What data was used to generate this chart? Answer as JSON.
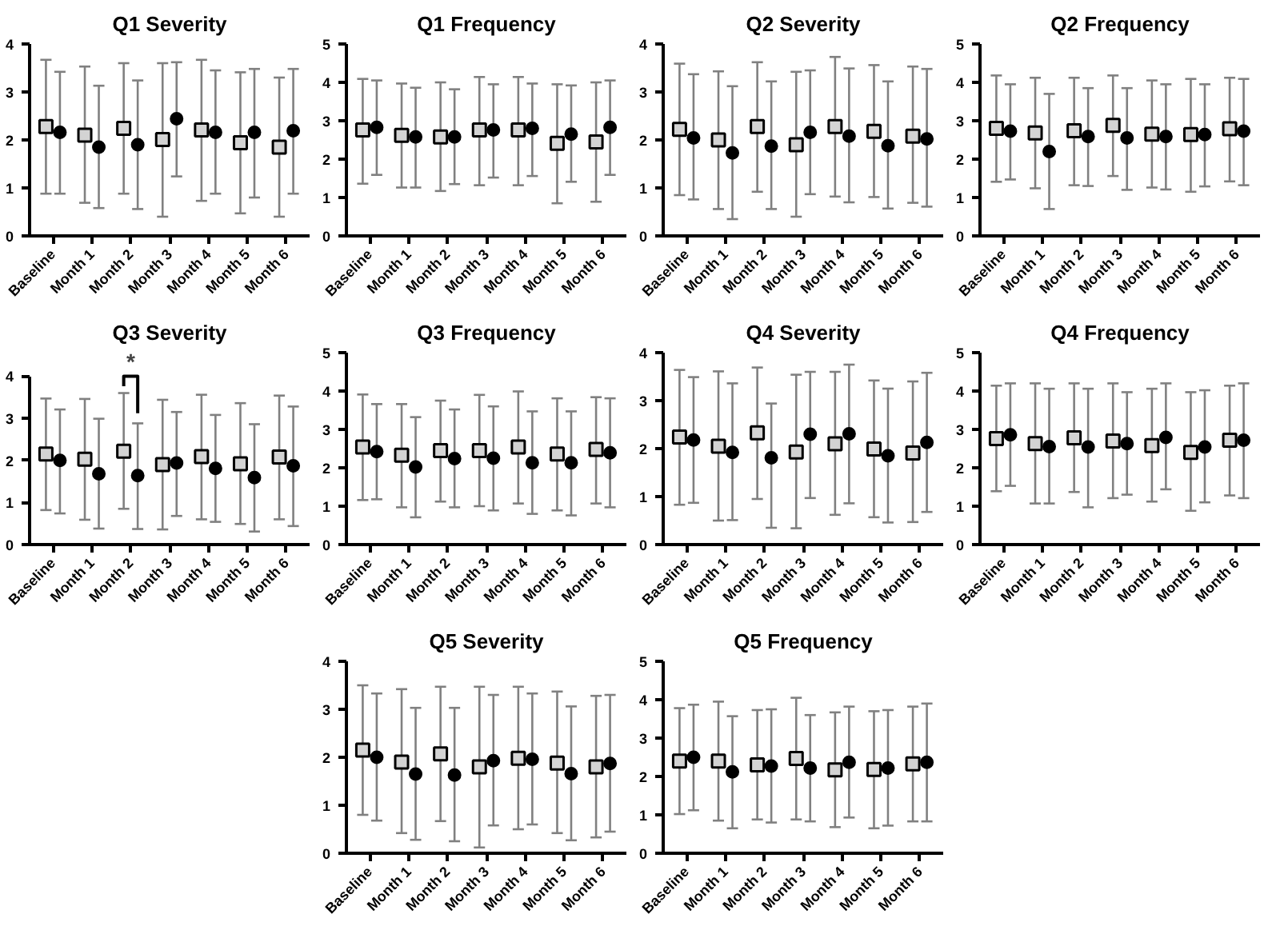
{
  "chart_data": [
    {
      "type": "scatter",
      "title": "Q1 Severity",
      "categories": [
        "Baseline",
        "Month 1",
        "Month 2",
        "Month 3",
        "Month 4",
        "Month 5",
        "Month 6"
      ],
      "ylim": [
        0,
        4
      ],
      "yticks": [
        0,
        1,
        2,
        3,
        4
      ],
      "series": [
        {
          "color": "#d3d3d3",
          "marker": "square",
          "values": [
            2.28,
            2.1,
            2.24,
            2.01,
            2.21,
            1.94,
            1.85
          ],
          "errors": [
            [
              0.88,
              3.67
            ],
            [
              0.69,
              3.53
            ],
            [
              0.88,
              3.6
            ],
            [
              0.4,
              3.6
            ],
            [
              0.73,
              3.67
            ],
            [
              0.47,
              3.41
            ],
            [
              0.4,
              3.3
            ]
          ]
        },
        {
          "color": "#000000",
          "marker": "circle",
          "values": [
            2.16,
            1.85,
            1.9,
            2.44,
            2.16,
            2.16,
            2.19
          ],
          "errors": [
            [
              0.88,
              3.42
            ],
            [
              0.58,
              3.13
            ],
            [
              0.56,
              3.24
            ],
            [
              1.24,
              3.62
            ],
            [
              0.88,
              3.45
            ],
            [
              0.8,
              3.48
            ],
            [
              0.88,
              3.48
            ]
          ]
        }
      ]
    },
    {
      "type": "scatter",
      "title": "Q1 Frequency",
      "categories": [
        "Baseline",
        "Month 1",
        "Month 2",
        "Month 3",
        "Month 4",
        "Month 5",
        "Month 6"
      ],
      "ylim": [
        0,
        5
      ],
      "yticks": [
        0,
        1,
        2,
        3,
        4,
        5
      ],
      "series": [
        {
          "color": "#d3d3d3",
          "marker": "square",
          "values": [
            2.76,
            2.62,
            2.58,
            2.76,
            2.76,
            2.41,
            2.45
          ],
          "errors": [
            [
              1.36,
              4.09
            ],
            [
              1.26,
              3.97
            ],
            [
              1.17,
              4.0
            ],
            [
              1.32,
              4.14
            ],
            [
              1.32,
              4.14
            ],
            [
              0.85,
              3.95
            ],
            [
              0.89,
              4.0
            ]
          ]
        },
        {
          "color": "#000000",
          "marker": "circle",
          "values": [
            2.83,
            2.58,
            2.58,
            2.76,
            2.8,
            2.65,
            2.83
          ],
          "errors": [
            [
              1.59,
              4.05
            ],
            [
              1.26,
              3.86
            ],
            [
              1.35,
              3.82
            ],
            [
              1.52,
              3.95
            ],
            [
              1.56,
              3.97
            ],
            [
              1.41,
              3.92
            ],
            [
              1.59,
              4.05
            ]
          ]
        }
      ]
    },
    {
      "type": "scatter",
      "title": "Q2 Severity",
      "categories": [
        "Baseline",
        "Month 1",
        "Month 2",
        "Month 3",
        "Month 4",
        "Month 5",
        "Month 6"
      ],
      "ylim": [
        0,
        4
      ],
      "yticks": [
        0,
        1,
        2,
        3,
        4
      ],
      "series": [
        {
          "color": "#d3d3d3",
          "marker": "square",
          "values": [
            2.22,
            2.0,
            2.28,
            1.9,
            2.28,
            2.18,
            2.08
          ],
          "errors": [
            [
              0.85,
              3.59
            ],
            [
              0.56,
              3.43
            ],
            [
              0.92,
              3.62
            ],
            [
              0.4,
              3.42
            ],
            [
              0.82,
              3.73
            ],
            [
              0.81,
              3.56
            ],
            [
              0.69,
              3.53
            ]
          ]
        },
        {
          "color": "#000000",
          "marker": "circle",
          "values": [
            2.04,
            1.73,
            1.87,
            2.16,
            2.08,
            1.88,
            2.02
          ],
          "errors": [
            [
              0.76,
              3.37
            ],
            [
              0.35,
              3.12
            ],
            [
              0.56,
              3.22
            ],
            [
              0.87,
              3.45
            ],
            [
              0.7,
              3.49
            ],
            [
              0.57,
              3.22
            ],
            [
              0.61,
              3.48
            ]
          ]
        }
      ]
    },
    {
      "type": "scatter",
      "title": "Q2 Frequency",
      "categories": [
        "Baseline",
        "Month 1",
        "Month 2",
        "Month 3",
        "Month 4",
        "Month 5",
        "Month 6"
      ],
      "ylim": [
        0,
        5
      ],
      "yticks": [
        0,
        1,
        2,
        3,
        4,
        5
      ],
      "series": [
        {
          "color": "#d3d3d3",
          "marker": "square",
          "values": [
            2.8,
            2.68,
            2.74,
            2.88,
            2.65,
            2.64,
            2.79
          ],
          "errors": [
            [
              1.41,
              4.18
            ],
            [
              1.24,
              4.12
            ],
            [
              1.32,
              4.12
            ],
            [
              1.56,
              4.18
            ],
            [
              1.26,
              4.05
            ],
            [
              1.15,
              4.09
            ],
            [
              1.42,
              4.12
            ]
          ]
        },
        {
          "color": "#000000",
          "marker": "circle",
          "values": [
            2.73,
            2.2,
            2.59,
            2.55,
            2.59,
            2.64,
            2.73
          ],
          "errors": [
            [
              1.47,
              3.95
            ],
            [
              0.7,
              3.7
            ],
            [
              1.3,
              3.85
            ],
            [
              1.2,
              3.85
            ],
            [
              1.21,
              3.95
            ],
            [
              1.29,
              3.95
            ],
            [
              1.32,
              4.09
            ]
          ]
        }
      ]
    },
    {
      "type": "scatter",
      "title": "Q3 Severity",
      "categories": [
        "Baseline",
        "Month 1",
        "Month 2",
        "Month 3",
        "Month 4",
        "Month 5",
        "Month 6"
      ],
      "ylim": [
        0,
        4
      ],
      "yticks": [
        0,
        1,
        2,
        3,
        4
      ],
      "annotations": [
        "*"
      ],
      "series": [
        {
          "color": "#d3d3d3",
          "marker": "square",
          "values": [
            2.15,
            2.03,
            2.22,
            1.9,
            2.09,
            1.92,
            2.08
          ],
          "errors": [
            [
              0.82,
              3.47
            ],
            [
              0.59,
              3.46
            ],
            [
              0.85,
              3.6
            ],
            [
              0.36,
              3.44
            ],
            [
              0.6,
              3.56
            ],
            [
              0.49,
              3.36
            ],
            [
              0.6,
              3.54
            ]
          ]
        },
        {
          "color": "#000000",
          "marker": "circle",
          "values": [
            2.0,
            1.68,
            1.64,
            1.94,
            1.81,
            1.59,
            1.87
          ],
          "errors": [
            [
              0.74,
              3.21
            ],
            [
              0.38,
              2.99
            ],
            [
              0.37,
              2.88
            ],
            [
              0.68,
              3.15
            ],
            [
              0.54,
              3.08
            ],
            [
              0.31,
              2.86
            ],
            [
              0.44,
              3.28
            ]
          ]
        }
      ]
    },
    {
      "type": "scatter",
      "title": "Q3 Frequency",
      "categories": [
        "Baseline",
        "Month 1",
        "Month 2",
        "Month 3",
        "Month 4",
        "Month 5",
        "Month 6"
      ],
      "ylim": [
        0,
        5
      ],
      "yticks": [
        0,
        1,
        2,
        3,
        4,
        5
      ],
      "series": [
        {
          "color": "#d3d3d3",
          "marker": "square",
          "values": [
            2.54,
            2.33,
            2.45,
            2.45,
            2.54,
            2.36,
            2.48
          ],
          "errors": [
            [
              1.16,
              3.91
            ],
            [
              0.97,
              3.66
            ],
            [
              1.12,
              3.75
            ],
            [
              1.0,
              3.9
            ],
            [
              1.07,
              3.99
            ],
            [
              0.89,
              3.81
            ],
            [
              1.07,
              3.84
            ]
          ]
        },
        {
          "color": "#000000",
          "marker": "circle",
          "values": [
            2.42,
            2.02,
            2.24,
            2.25,
            2.13,
            2.13,
            2.39
          ],
          "errors": [
            [
              1.18,
              3.66
            ],
            [
              0.71,
              3.32
            ],
            [
              0.97,
              3.52
            ],
            [
              0.89,
              3.6
            ],
            [
              0.8,
              3.47
            ],
            [
              0.76,
              3.47
            ],
            [
              0.97,
              3.81
            ]
          ]
        }
      ]
    },
    {
      "type": "scatter",
      "title": "Q4 Severity",
      "categories": [
        "Baseline",
        "Month 1",
        "Month 2",
        "Month 3",
        "Month 4",
        "Month 5",
        "Month 6"
      ],
      "ylim": [
        0,
        4
      ],
      "yticks": [
        0,
        1,
        2,
        3,
        4
      ],
      "series": [
        {
          "color": "#d3d3d3",
          "marker": "square",
          "values": [
            2.24,
            2.05,
            2.33,
            1.93,
            2.1,
            1.99,
            1.91
          ],
          "errors": [
            [
              0.83,
              3.64
            ],
            [
              0.5,
              3.61
            ],
            [
              0.95,
              3.69
            ],
            [
              0.34,
              3.54
            ],
            [
              0.62,
              3.6
            ],
            [
              0.57,
              3.42
            ],
            [
              0.47,
              3.4
            ]
          ]
        },
        {
          "color": "#000000",
          "marker": "circle",
          "values": [
            2.18,
            1.92,
            1.81,
            2.3,
            2.31,
            1.85,
            2.13
          ],
          "errors": [
            [
              0.87,
              3.49
            ],
            [
              0.51,
              3.36
            ],
            [
              0.35,
              2.94
            ],
            [
              0.97,
              3.6
            ],
            [
              0.86,
              3.75
            ],
            [
              0.46,
              3.25
            ],
            [
              0.68,
              3.58
            ]
          ]
        }
      ]
    },
    {
      "type": "scatter",
      "title": "Q4 Frequency",
      "categories": [
        "Baseline",
        "Month 1",
        "Month 2",
        "Month 3",
        "Month 4",
        "Month 5",
        "Month 6"
      ],
      "ylim": [
        0,
        5
      ],
      "yticks": [
        0,
        1,
        2,
        3,
        4,
        5
      ],
      "series": [
        {
          "color": "#d3d3d3",
          "marker": "square",
          "values": [
            2.76,
            2.63,
            2.78,
            2.7,
            2.58,
            2.4,
            2.72
          ],
          "errors": [
            [
              1.39,
              4.14
            ],
            [
              1.07,
              4.2
            ],
            [
              1.37,
              4.2
            ],
            [
              1.21,
              4.2
            ],
            [
              1.12,
              4.06
            ],
            [
              0.88,
              3.97
            ],
            [
              1.28,
              4.14
            ]
          ]
        },
        {
          "color": "#000000",
          "marker": "circle",
          "values": [
            2.86,
            2.55,
            2.54,
            2.63,
            2.79,
            2.54,
            2.72
          ],
          "errors": [
            [
              1.53,
              4.2
            ],
            [
              1.07,
              4.06
            ],
            [
              0.97,
              4.06
            ],
            [
              1.3,
              3.97
            ],
            [
              1.44,
              4.2
            ],
            [
              1.1,
              4.02
            ],
            [
              1.21,
              4.2
            ]
          ]
        }
      ]
    },
    {
      "type": "scatter",
      "title": "Q5 Severity",
      "categories": [
        "Baseline",
        "Month 1",
        "Month 2",
        "Month 3",
        "Month 4",
        "Month 5",
        "Month 6"
      ],
      "ylim": [
        0,
        4
      ],
      "yticks": [
        0,
        1,
        2,
        3,
        4
      ],
      "series": [
        {
          "color": "#d3d3d3",
          "marker": "square",
          "values": [
            2.15,
            1.9,
            2.07,
            1.8,
            1.98,
            1.88,
            1.8
          ],
          "errors": [
            [
              0.8,
              3.5
            ],
            [
              0.42,
              3.42
            ],
            [
              0.67,
              3.47
            ],
            [
              0.12,
              3.47
            ],
            [
              0.5,
              3.47
            ],
            [
              0.42,
              3.37
            ],
            [
              0.33,
              3.28
            ]
          ]
        },
        {
          "color": "#000000",
          "marker": "circle",
          "values": [
            2.0,
            1.65,
            1.63,
            1.93,
            1.96,
            1.66,
            1.87
          ],
          "errors": [
            [
              0.68,
              3.33
            ],
            [
              0.28,
              3.03
            ],
            [
              0.25,
              3.03
            ],
            [
              0.58,
              3.3
            ],
            [
              0.6,
              3.33
            ],
            [
              0.27,
              3.06
            ],
            [
              0.45,
              3.3
            ]
          ]
        }
      ]
    },
    {
      "type": "scatter",
      "title": "Q5 Frequency",
      "categories": [
        "Baseline",
        "Month 1",
        "Month 2",
        "Month 3",
        "Month 4",
        "Month 5",
        "Month 6"
      ],
      "ylim": [
        0,
        5
      ],
      "yticks": [
        0,
        1,
        2,
        3,
        4,
        5
      ],
      "series": [
        {
          "color": "#d3d3d3",
          "marker": "square",
          "values": [
            2.4,
            2.4,
            2.3,
            2.47,
            2.17,
            2.18,
            2.33
          ],
          "errors": [
            [
              1.02,
              3.78
            ],
            [
              0.85,
              3.95
            ],
            [
              0.88,
              3.73
            ],
            [
              0.88,
              4.05
            ],
            [
              0.68,
              3.67
            ],
            [
              0.65,
              3.7
            ],
            [
              0.83,
              3.82
            ]
          ]
        },
        {
          "color": "#000000",
          "marker": "circle",
          "values": [
            2.5,
            2.12,
            2.27,
            2.22,
            2.37,
            2.22,
            2.37
          ],
          "errors": [
            [
              1.12,
              3.87
            ],
            [
              0.65,
              3.57
            ],
            [
              0.8,
              3.75
            ],
            [
              0.83,
              3.6
            ],
            [
              0.93,
              3.82
            ],
            [
              0.72,
              3.73
            ],
            [
              0.83,
              3.9
            ]
          ]
        }
      ]
    }
  ]
}
